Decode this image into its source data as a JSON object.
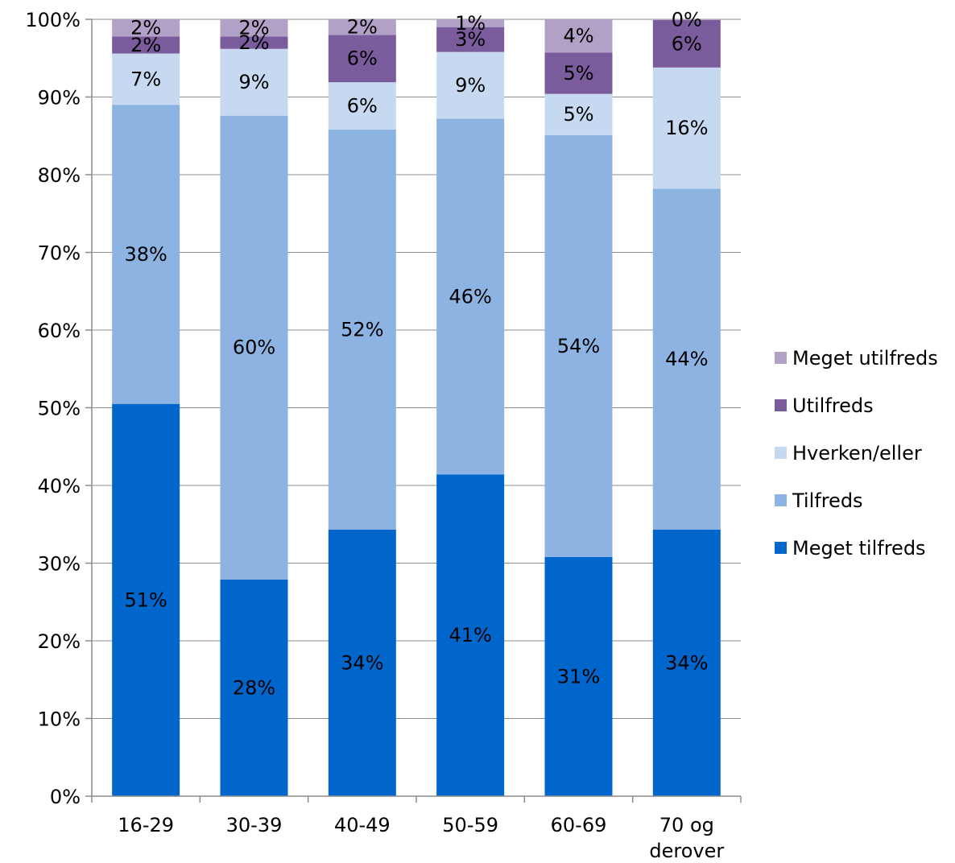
{
  "chart_data": {
    "type": "bar",
    "stacked": true,
    "percent": true,
    "categories": [
      "16-29",
      "30-39",
      "40-49",
      "50-59",
      "60-69",
      "70 og derover"
    ],
    "category_lines": [
      [
        "16-29"
      ],
      [
        "30-39"
      ],
      [
        "40-49"
      ],
      [
        "50-59"
      ],
      [
        "60-69"
      ],
      [
        "70 og",
        "derover"
      ]
    ],
    "series": [
      {
        "name": "Meget tilfreds",
        "color": "#0066CC",
        "values": [
          50.5,
          27.9,
          34.3,
          41.4,
          30.8,
          34.3
        ],
        "labels": [
          "51%",
          "28%",
          "34%",
          "41%",
          "31%",
          "34%"
        ]
      },
      {
        "name": "Tilfreds",
        "color": "#8DB3E2",
        "values": [
          38.5,
          59.7,
          51.5,
          45.8,
          54.3,
          43.9
        ],
        "labels": [
          "38%",
          "60%",
          "52%",
          "46%",
          "54%",
          "44%"
        ]
      },
      {
        "name": "Hverken/eller",
        "color": "#C6D9F1",
        "values": [
          6.6,
          8.6,
          6.1,
          8.6,
          5.3,
          15.6
        ],
        "labels": [
          "7%",
          "9%",
          "6%",
          "9%",
          "5%",
          "16%"
        ]
      },
      {
        "name": "Utilfreds",
        "color": "#7A5C9D",
        "values": [
          2.2,
          1.6,
          6.1,
          3.2,
          5.3,
          6.1
        ],
        "labels": [
          "2%",
          "2%",
          "6%",
          "3%",
          "5%",
          "6%"
        ]
      },
      {
        "name": "Meget utilfreds",
        "color": "#B2A1C7",
        "values": [
          2.2,
          2.2,
          2.0,
          1.0,
          4.3,
          0.1
        ],
        "labels": [
          "2%",
          "2%",
          "2%",
          "1%",
          "4%",
          "0%"
        ]
      }
    ],
    "ylim": [
      0,
      100
    ],
    "yticks": [
      "0%",
      "10%",
      "20%",
      "30%",
      "40%",
      "50%",
      "60%",
      "70%",
      "80%",
      "90%",
      "100%"
    ],
    "xlabel": "",
    "ylabel": "",
    "title": "",
    "grid": true,
    "legend": "right"
  }
}
